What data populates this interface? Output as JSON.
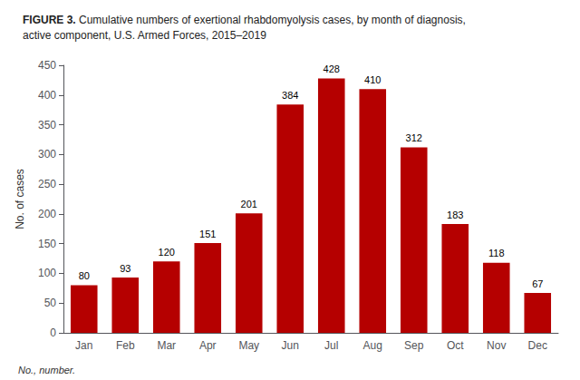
{
  "chart_data": {
    "type": "bar",
    "title": "FIGURE 3.",
    "subtitle": "Cumulative numbers of exertional rhabdomyolysis cases, by month of diagnosis,\nactive component, U.S. Armed Forces, 2015–2019",
    "annotations": [
      "No., number."
    ],
    "ylabel": "No. of cases",
    "categories": [
      "Jan",
      "Feb",
      "Mar",
      "Apr",
      "May",
      "Jun",
      "Jul",
      "Aug",
      "Sep",
      "Oct",
      "Nov",
      "Dec"
    ],
    "values": [
      80,
      93,
      120,
      151,
      201,
      384,
      428,
      410,
      312,
      183,
      118,
      67
    ],
    "color": "#b50000",
    "ylim": [
      0,
      450
    ],
    "yticks": [
      0,
      50,
      100,
      150,
      200,
      250,
      300,
      350,
      400,
      450
    ],
    "grid": false,
    "data_labels": true
  }
}
